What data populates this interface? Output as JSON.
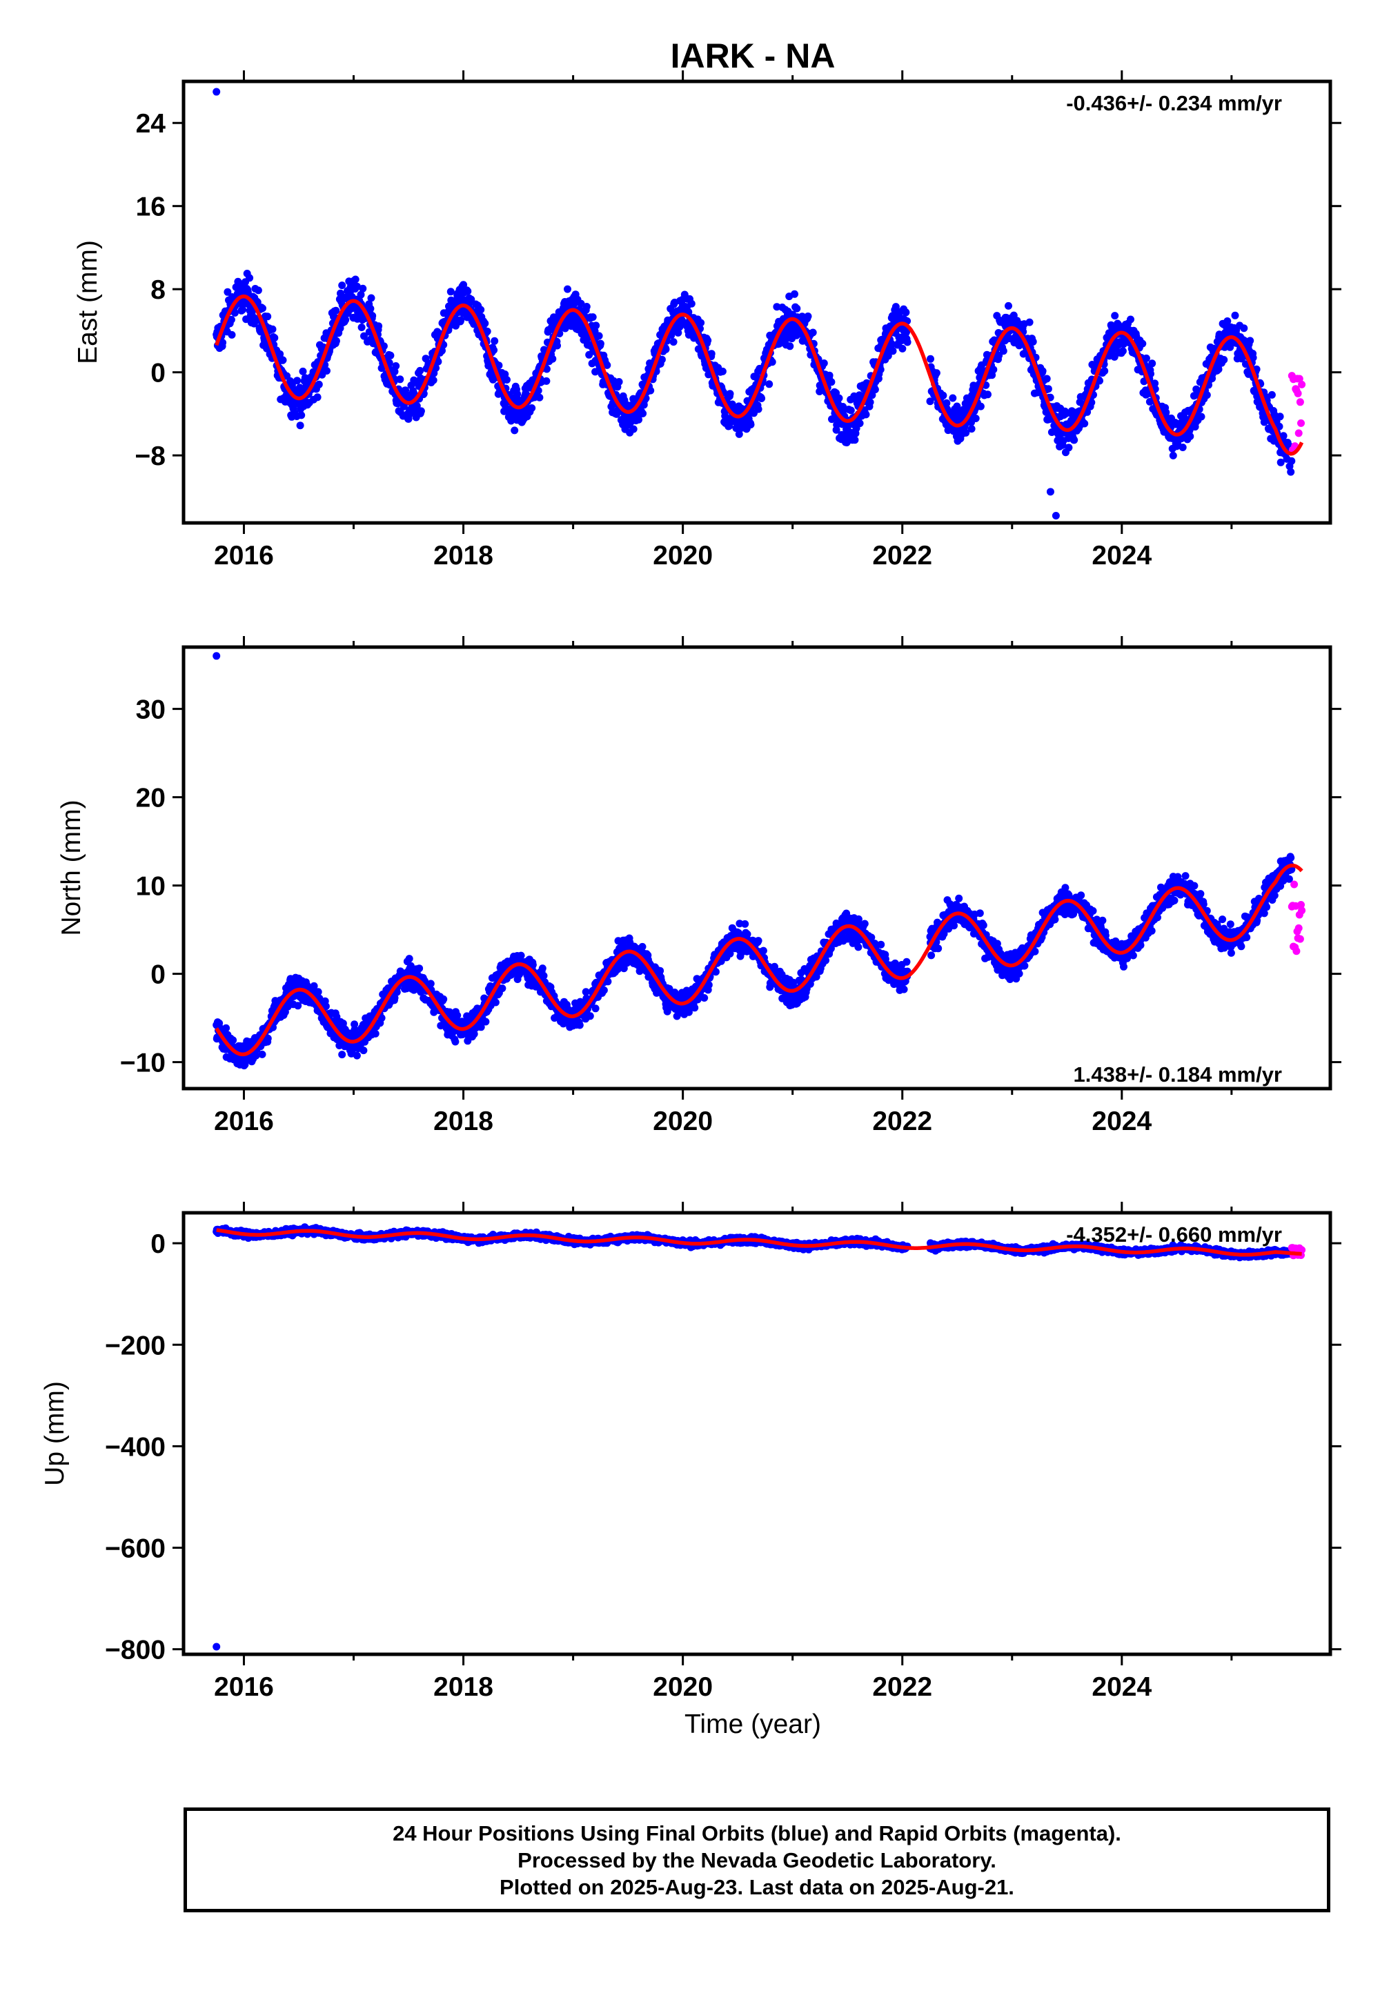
{
  "title": "IARK - NA",
  "xlabel": "Time (year)",
  "colors": {
    "final": "#0000ff",
    "rapid": "#ff00ff",
    "model": "#ff0000"
  },
  "caption": {
    "line1": "24 Hour Positions Using Final Orbits (blue) and Rapid Orbits (magenta).",
    "line2": "Processed by the Nevada Geodetic Laboratory.",
    "line3": "Plotted on 2025-Aug-23. Last data on 2025-Aug-21."
  },
  "chart_data": [
    {
      "type": "scatter",
      "component": "east",
      "ylabel": "East (mm)",
      "rate_label": "-0.436+/- 0.234 mm/yr",
      "xlim": [
        2015.45,
        2025.9
      ],
      "ylim": [
        -14.5,
        28
      ],
      "xticks": [
        2016,
        2018,
        2020,
        2022,
        2024
      ],
      "yticks": [
        24,
        16,
        8,
        0,
        -8
      ],
      "ytick_labels": [
        "24",
        "16",
        "8",
        "0",
        "−8"
      ],
      "model": {
        "mean": 0.5,
        "rate": -0.436,
        "ref_year": 2020.6,
        "amplitude": 4.8,
        "peak_phase": 0.0,
        "end_bend": -2.0
      },
      "scatter_sd": 1.7,
      "outliers": [
        [
          2015.75,
          27.0
        ],
        [
          2023.4,
          -13.8
        ],
        [
          2023.35,
          -11.5
        ]
      ],
      "rapid": {
        "start": 2025.55,
        "end": 2025.64,
        "y_range": [
          -7.5,
          1.0
        ]
      }
    },
    {
      "type": "scatter",
      "component": "north",
      "ylabel": "North (mm)",
      "rate_label": "1.438+/- 0.184 mm/yr",
      "xlim": [
        2015.45,
        2025.9
      ],
      "ylim": [
        -13,
        37
      ],
      "xticks": [
        2016,
        2018,
        2020,
        2022,
        2024
      ],
      "yticks": [
        30,
        20,
        10,
        0,
        -10
      ],
      "ytick_labels": [
        "30",
        "20",
        "10",
        "0",
        "−10"
      ],
      "model": {
        "mean": 0.8,
        "rate": 1.438,
        "ref_year": 2020.6,
        "amplitude": 3.3,
        "peak_phase": 0.5,
        "end_bend": 1.5
      },
      "scatter_sd": 1.3,
      "outliers": [
        [
          2015.75,
          36.0
        ]
      ],
      "rapid": {
        "start": 2025.55,
        "end": 2025.64,
        "y_range": [
          1.5,
          10.5
        ]
      }
    },
    {
      "type": "scatter",
      "component": "up",
      "ylabel": "Up (mm)",
      "rate_label": "-4.352+/- 0.660 mm/yr",
      "xlim": [
        2015.45,
        2025.9
      ],
      "ylim": [
        -810,
        60
      ],
      "xticks": [
        2016,
        2018,
        2020,
        2022,
        2024
      ],
      "yticks": [
        0,
        -200,
        -400,
        -600,
        -800
      ],
      "ytick_labels": [
        "0",
        "−200",
        "−400",
        "−600",
        "−800"
      ],
      "model": {
        "mean": 2,
        "rate": -4.352,
        "ref_year": 2020.6,
        "amplitude": 5,
        "peak_phase": 0.6,
        "end_bend": -6
      },
      "scatter_sd": 5,
      "outliers": [
        [
          2015.75,
          -795
        ]
      ],
      "rapid": {
        "start": 2025.55,
        "end": 2025.64,
        "y_range": [
          -30,
          -8
        ]
      }
    }
  ]
}
